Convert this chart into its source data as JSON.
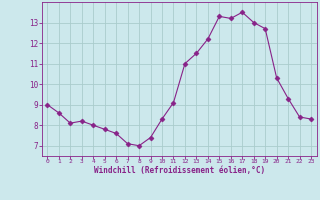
{
  "x": [
    0,
    1,
    2,
    3,
    4,
    5,
    6,
    7,
    8,
    9,
    10,
    11,
    12,
    13,
    14,
    15,
    16,
    17,
    18,
    19,
    20,
    21,
    22,
    23
  ],
  "y": [
    9.0,
    8.6,
    8.1,
    8.2,
    8.0,
    7.8,
    7.6,
    7.1,
    7.0,
    7.4,
    8.3,
    9.1,
    11.0,
    11.5,
    12.2,
    13.3,
    13.2,
    13.5,
    13.0,
    12.7,
    10.3,
    9.3,
    8.4,
    8.3
  ],
  "line_color": "#882288",
  "marker_color": "#882288",
  "bg_color": "#cce8ec",
  "grid_color": "#aacccc",
  "xlabel": "Windchill (Refroidissement éolien,°C)",
  "xlabel_color": "#882288",
  "tick_color": "#882288",
  "spine_color": "#882288",
  "ylim": [
    6.5,
    14.0
  ],
  "xlim": [
    -0.5,
    23.5
  ],
  "yticks": [
    7,
    8,
    9,
    10,
    11,
    12,
    13
  ],
  "xticks": [
    0,
    1,
    2,
    3,
    4,
    5,
    6,
    7,
    8,
    9,
    10,
    11,
    12,
    13,
    14,
    15,
    16,
    17,
    18,
    19,
    20,
    21,
    22,
    23
  ],
  "figsize": [
    3.2,
    2.0
  ],
  "dpi": 100
}
